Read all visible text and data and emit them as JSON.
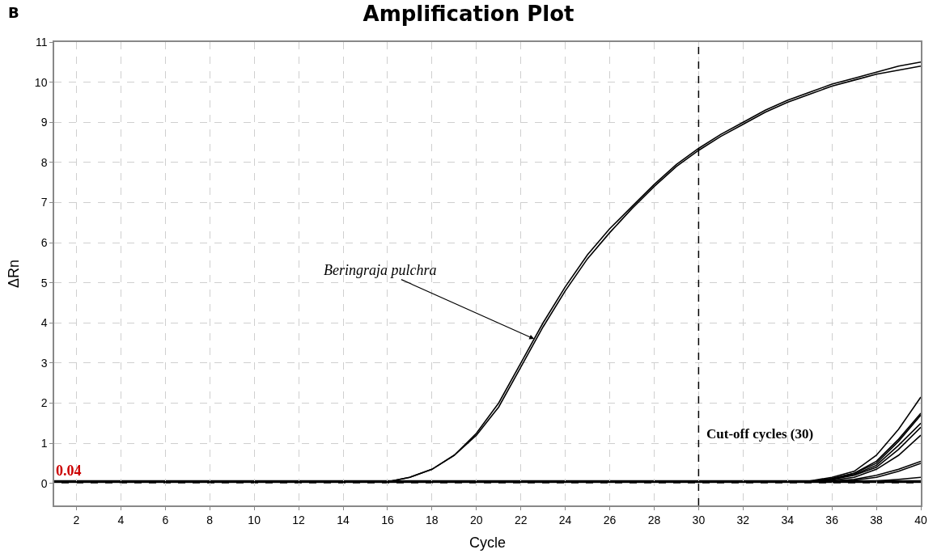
{
  "chart_data": {
    "type": "line",
    "title": "Amplification Plot",
    "xlabel": "Cycle",
    "ylabel": "ΔRn",
    "x": [
      1,
      2,
      3,
      4,
      5,
      6,
      7,
      8,
      9,
      10,
      11,
      12,
      13,
      14,
      15,
      16,
      17,
      18,
      19,
      20,
      21,
      22,
      23,
      24,
      25,
      26,
      27,
      28,
      29,
      30,
      31,
      32,
      33,
      34,
      35,
      36,
      37,
      38,
      39,
      40
    ],
    "series": [
      {
        "color": "#000000",
        "values": [
          0.04,
          0.04,
          0.04,
          0.04,
          0.04,
          0.04,
          0.04,
          0.04,
          0.04,
          0.04,
          0.04,
          0.04,
          0.04,
          0.04,
          0.04,
          0.04,
          0.15,
          0.35,
          0.7,
          1.25,
          2.0,
          3.0,
          4.0,
          4.9,
          5.7,
          6.35,
          6.9,
          7.45,
          7.95,
          8.35,
          8.7,
          9.0,
          9.3,
          9.55,
          9.75,
          9.95,
          10.1,
          10.25,
          10.4,
          10.5
        ]
      },
      {
        "color": "#000000",
        "values": [
          0.04,
          0.04,
          0.04,
          0.04,
          0.04,
          0.04,
          0.04,
          0.04,
          0.04,
          0.04,
          0.04,
          0.04,
          0.04,
          0.04,
          0.04,
          0.04,
          0.15,
          0.35,
          0.7,
          1.2,
          1.9,
          2.9,
          3.9,
          4.8,
          5.6,
          6.25,
          6.85,
          7.4,
          7.9,
          8.3,
          8.65,
          8.95,
          9.25,
          9.5,
          9.7,
          9.9,
          10.05,
          10.2,
          10.3,
          10.4
        ]
      },
      {
        "color": "#000000",
        "x": [
          1,
          34,
          35,
          36,
          37,
          38,
          39,
          40
        ],
        "values": [
          0.04,
          0.04,
          0.06,
          0.15,
          0.3,
          0.7,
          1.35,
          2.15
        ]
      },
      {
        "color": "#000000",
        "x": [
          1,
          34,
          35,
          36,
          37,
          38,
          39,
          40
        ],
        "values": [
          0.04,
          0.04,
          0.05,
          0.12,
          0.25,
          0.55,
          1.1,
          1.75
        ]
      },
      {
        "color": "#000000",
        "x": [
          1,
          34,
          35,
          36,
          37,
          38,
          39,
          40
        ],
        "values": [
          0.04,
          0.04,
          0.05,
          0.12,
          0.25,
          0.5,
          1.05,
          1.7
        ]
      },
      {
        "color": "#000000",
        "x": [
          1,
          34,
          35,
          36,
          37,
          38,
          39,
          40
        ],
        "values": [
          0.04,
          0.04,
          0.05,
          0.1,
          0.22,
          0.45,
          0.95,
          1.5
        ]
      },
      {
        "color": "#000000",
        "x": [
          1,
          34,
          35,
          36,
          37,
          38,
          39,
          40
        ],
        "values": [
          0.04,
          0.04,
          0.05,
          0.1,
          0.2,
          0.4,
          0.85,
          1.4
        ]
      },
      {
        "color": "#000000",
        "x": [
          1,
          35,
          36,
          37,
          38,
          39,
          40
        ],
        "values": [
          0.04,
          0.04,
          0.08,
          0.15,
          0.35,
          0.7,
          1.2
        ]
      },
      {
        "color": "#000000",
        "x": [
          1,
          35,
          36,
          37,
          38,
          39,
          40
        ],
        "values": [
          0.04,
          0.04,
          0.06,
          0.1,
          0.2,
          0.35,
          0.55
        ]
      },
      {
        "color": "#000000",
        "x": [
          1,
          35,
          36,
          37,
          38,
          39,
          40
        ],
        "values": [
          0.04,
          0.04,
          0.05,
          0.08,
          0.15,
          0.3,
          0.5
        ]
      },
      {
        "color": "#000000",
        "x": [
          36,
          37,
          38,
          39,
          40
        ],
        "values": [
          0.04,
          0.04,
          0.06,
          0.1,
          0.15
        ]
      }
    ],
    "xlim": [
      1,
      40
    ],
    "xticks": [
      2,
      4,
      6,
      8,
      10,
      12,
      14,
      16,
      18,
      20,
      22,
      24,
      26,
      28,
      30,
      32,
      34,
      36,
      38,
      40
    ],
    "ylim": [
      -0.55,
      11
    ],
    "yticks": [
      0,
      1,
      2,
      3,
      4,
      5,
      6,
      7,
      8,
      9,
      10,
      11
    ],
    "grid": true,
    "marker": "none",
    "line_style": "solid",
    "ref_lines": [
      {
        "axis": "y",
        "value": 0.04,
        "label": "0.04",
        "color": "#000000",
        "line_style": "solid"
      },
      {
        "axis": "x",
        "value": 30,
        "label": "Cut-off cycles (30)",
        "color": "#000000",
        "line_style": "dashed"
      }
    ],
    "annotations": [
      "B",
      {
        "text": "Beringraja pulchra",
        "x": 22.6,
        "y": 3.6
      }
    ]
  }
}
